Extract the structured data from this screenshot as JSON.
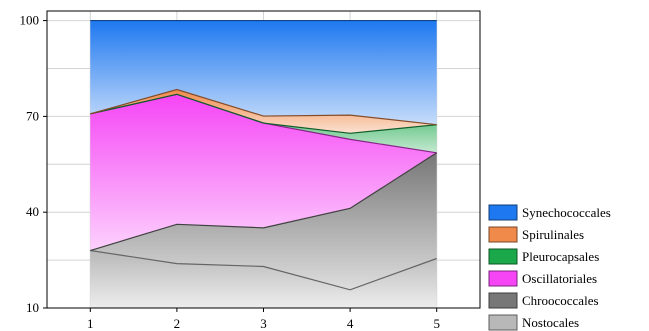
{
  "chart_data": {
    "type": "area",
    "stacking": "cumulative",
    "x": [
      1,
      2,
      3,
      4,
      5
    ],
    "xticks": [
      "1",
      "2",
      "3",
      "4",
      "5"
    ],
    "yticks": [
      "10",
      "40",
      "70",
      "100"
    ],
    "xlim": [
      0.5,
      5.5
    ],
    "ylim": [
      10,
      103
    ],
    "grid": true,
    "legend_position": "right-bottom",
    "series": [
      {
        "name": "Nostocales",
        "color": "#b8b8b8",
        "values": [
          28.0,
          23.9,
          23.0,
          15.7,
          25.5
        ]
      },
      {
        "name": "Chroococcales",
        "color": "#777777",
        "values": [
          28.0,
          36.2,
          35.1,
          41.2,
          58.6
        ]
      },
      {
        "name": "Oscillatoriales",
        "color": "#f545f5",
        "values": [
          70.8,
          76.9,
          67.9,
          62.8,
          58.6
        ]
      },
      {
        "name": "Pleurocapsales",
        "color": "#1aa84a",
        "values": [
          70.8,
          76.9,
          67.9,
          64.7,
          67.4
        ]
      },
      {
        "name": "Spirulinales",
        "color": "#f08a4a",
        "values": [
          70.8,
          78.4,
          70.1,
          70.4,
          67.4
        ]
      },
      {
        "name": "Synechococcales",
        "color": "#1e78f0",
        "values": [
          100,
          100,
          100,
          100,
          100
        ]
      }
    ],
    "legend": [
      "Synechococcales",
      "Spirulinales",
      "Pleurocapsales",
      "Oscillatoriales",
      "Chroococcales",
      "Nostocales"
    ]
  }
}
